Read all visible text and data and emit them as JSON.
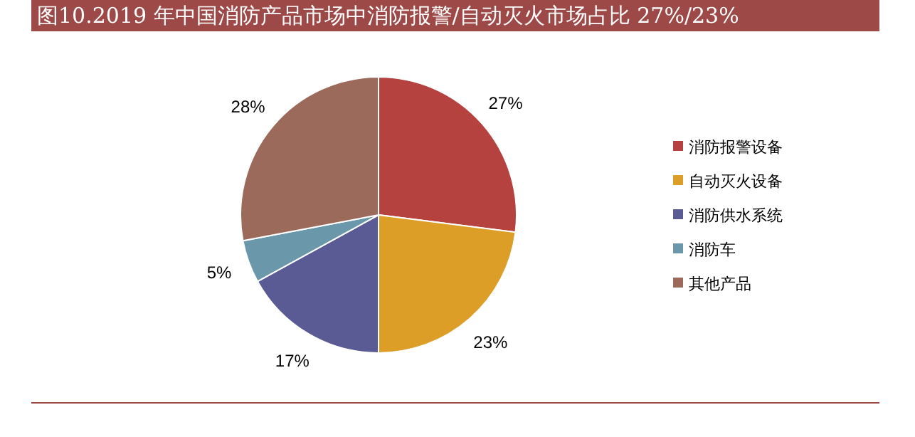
{
  "chart_data": {
    "type": "pie",
    "title": "图10.2019 年中国消防产品市场中消防报警/自动灭火市场占比 27%/23%",
    "categories": [
      "消防报警设备",
      "自动灭火设备",
      "消防供水系统",
      "消防车",
      "其他产品"
    ],
    "values": [
      27,
      23,
      17,
      5,
      28
    ],
    "colors": [
      "#b5423f",
      "#dc9e27",
      "#5a5b94",
      "#6a97a9",
      "#9c6a5b"
    ],
    "value_labels": [
      "27%",
      "23%",
      "17%",
      "5%",
      "28%"
    ],
    "legend": "right"
  }
}
